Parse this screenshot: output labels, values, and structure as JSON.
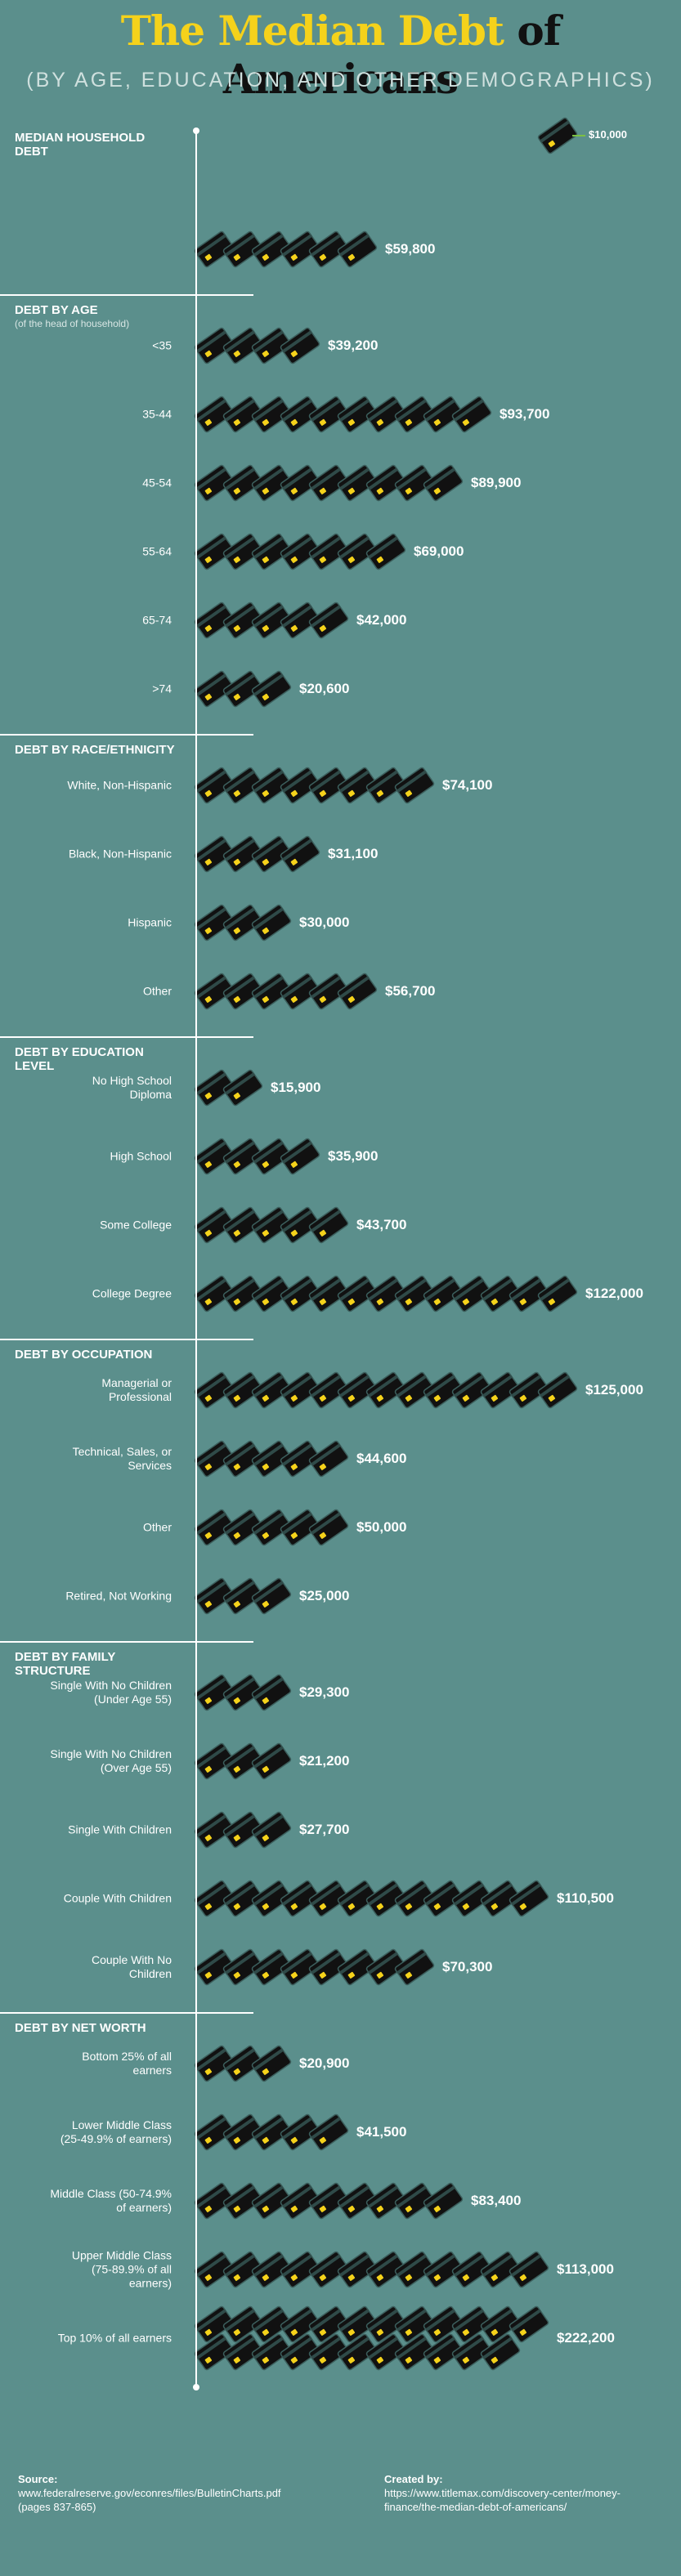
{
  "header": {
    "title_highlight": "The Median Debt",
    "title_rest": "of Americans",
    "subtitle": "(BY AGE, EDUCATION, AND OTHER DEMOGRAPHICS)"
  },
  "legend": {
    "value": 10000,
    "label": "$10,000"
  },
  "chart_data": [
    {
      "type": "pictograph",
      "title": "MEDIAN HOUSEHOLD DEBT",
      "categories": [
        null
      ],
      "values": [
        59800
      ],
      "value_labels": [
        "$59,800"
      ]
    },
    {
      "type": "pictograph",
      "title": "DEBT BY AGE",
      "subtitle": "(of the head of household)",
      "categories": [
        "<35",
        "35-44",
        "45-54",
        "55-64",
        "65-74",
        ">74"
      ],
      "values": [
        39200,
        93700,
        89900,
        69000,
        42000,
        20600
      ],
      "value_labels": [
        "$39,200",
        "$93,700",
        "$89,900",
        "$69,000",
        "$42,000",
        "$20,600"
      ]
    },
    {
      "type": "pictograph",
      "title": "DEBT BY RACE/ETHNICITY",
      "categories": [
        "White, Non-Hispanic",
        "Black, Non-Hispanic",
        "Hispanic",
        "Other"
      ],
      "values": [
        74100,
        31100,
        30000,
        56700
      ],
      "value_labels": [
        "$74,100",
        "$31,100",
        "$30,000",
        "$56,700"
      ]
    },
    {
      "type": "pictograph",
      "title": "DEBT BY EDUCATION LEVEL",
      "categories": [
        "No High School Diploma",
        "High School",
        "Some College",
        "College Degree"
      ],
      "values": [
        15900,
        35900,
        43700,
        122000
      ],
      "value_labels": [
        "$15,900",
        "$35,900",
        "$43,700",
        "$122,000"
      ]
    },
    {
      "type": "pictograph",
      "title": "DEBT BY OCCUPATION",
      "categories": [
        "Managerial or Professional",
        "Technical, Sales, or Services",
        "Other",
        "Retired, Not Working"
      ],
      "values": [
        125000,
        44600,
        50000,
        25000
      ],
      "value_labels": [
        "$125,000",
        "$44,600",
        "$50,000",
        "$25,000"
      ]
    },
    {
      "type": "pictograph",
      "title": "DEBT BY FAMILY STRUCTURE",
      "categories": [
        "Single With No Children (Under Age 55)",
        "Single With No Children (Over Age 55)",
        "Single With Children",
        "Couple With Children",
        "Couple With No Children"
      ],
      "values": [
        29300,
        21200,
        27700,
        110500,
        70300
      ],
      "value_labels": [
        "$29,300",
        "$21,200",
        "$27,700",
        "$110,500",
        "$70,300"
      ]
    },
    {
      "type": "pictograph",
      "title": "DEBT BY NET WORTH",
      "categories": [
        "Bottom 25% of all earners",
        "Lower Middle Class (25-49.9% of earners)",
        "Middle Class (50-74.9% of earners)",
        "Upper Middle Class (75-89.9% of all earners)",
        "Top 10% of all earners"
      ],
      "values": [
        20900,
        41500,
        83400,
        113000,
        222200
      ],
      "value_labels": [
        "$20,900",
        "$41,500",
        "$83,400",
        "$113,000",
        "$222,200"
      ]
    }
  ],
  "footer": {
    "source_label": "Source:",
    "source": "www.federalreserve.gov/econres/files/BulletinCharts.pdf (pages 837-865)",
    "credit_label": "Created by:",
    "credit": "https://www.titlemax.com/discovery-center/money-finance/the-median-debt-of-americans/"
  }
}
